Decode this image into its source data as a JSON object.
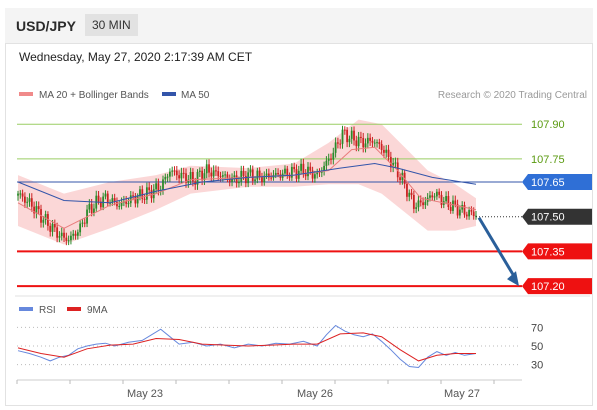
{
  "header": {
    "symbol": "USD/JPY",
    "timeframe": "30 MIN"
  },
  "datetime": "Wednesday, May 27, 2020 2:17:39 AM CET",
  "legend": {
    "ma20": "MA 20 + Bollinger Bands",
    "ma50": "MA 50",
    "source": "Research © 2020 Trading Central"
  },
  "colors": {
    "candle_up": "#2a8a2a",
    "candle_down": "#cc2222",
    "band_fill": "#f9c9c9",
    "ma20": "#e87c7c",
    "ma50": "#3355aa",
    "resistance": "#9acd64",
    "support": "#ee1111",
    "arrow": "#2a5f9a",
    "rsi": "#6688dd",
    "rsi_ma": "#dd2222"
  },
  "chart_data": [
    {
      "type": "candlestick",
      "ylim": [
        107.14,
        107.97
      ],
      "x_ticks": [
        "May 23",
        "May 26",
        "May 27"
      ],
      "levels": [
        {
          "value": 107.9,
          "label": "107.90",
          "kind": "resistance"
        },
        {
          "value": 107.75,
          "label": "107.75",
          "kind": "resistance"
        },
        {
          "value": 107.65,
          "label": "107.65",
          "kind": "pivot"
        },
        {
          "value": 107.35,
          "label": "107.35",
          "kind": "support"
        },
        {
          "value": 107.2,
          "label": "107.20",
          "kind": "support"
        }
      ],
      "current_price": {
        "value": 107.5,
        "label": "107.50"
      },
      "forecast": {
        "from": 107.5,
        "to": 107.2
      },
      "close_path": [
        [
          0,
          107.6
        ],
        [
          6,
          107.55
        ],
        [
          12,
          107.48
        ],
        [
          18,
          107.42
        ],
        [
          22,
          107.4
        ],
        [
          27,
          107.45
        ],
        [
          30,
          107.52
        ],
        [
          34,
          107.56
        ],
        [
          38,
          107.58
        ],
        [
          44,
          107.55
        ],
        [
          50,
          107.58
        ],
        [
          56,
          107.6
        ],
        [
          62,
          107.63
        ],
        [
          66,
          107.7
        ],
        [
          70,
          107.68
        ],
        [
          76,
          107.66
        ],
        [
          82,
          107.7
        ],
        [
          88,
          107.68
        ],
        [
          94,
          107.66
        ],
        [
          100,
          107.68
        ],
        [
          106,
          107.67
        ],
        [
          112,
          107.68
        ],
        [
          118,
          107.69
        ],
        [
          124,
          107.7
        ],
        [
          130,
          107.68
        ],
        [
          136,
          107.76
        ],
        [
          141,
          107.86
        ],
        [
          145,
          107.84
        ],
        [
          150,
          107.82
        ],
        [
          154,
          107.83
        ],
        [
          158,
          107.8
        ],
        [
          162,
          107.74
        ],
        [
          167,
          107.66
        ],
        [
          172,
          107.55
        ],
        [
          176,
          107.56
        ],
        [
          181,
          107.6
        ],
        [
          186,
          107.56
        ],
        [
          190,
          107.54
        ],
        [
          194,
          107.52
        ],
        [
          199,
          107.51
        ]
      ],
      "ma20_path": [
        [
          0,
          107.56
        ],
        [
          20,
          107.45
        ],
        [
          40,
          107.55
        ],
        [
          60,
          107.6
        ],
        [
          75,
          107.66
        ],
        [
          100,
          107.67
        ],
        [
          120,
          107.68
        ],
        [
          135,
          107.7
        ],
        [
          145,
          107.79
        ],
        [
          155,
          107.8
        ],
        [
          165,
          107.7
        ],
        [
          175,
          107.58
        ],
        [
          190,
          107.55
        ],
        [
          199,
          107.53
        ]
      ],
      "ma50_path": [
        [
          0,
          107.65
        ],
        [
          20,
          107.57
        ],
        [
          40,
          107.56
        ],
        [
          60,
          107.61
        ],
        [
          80,
          107.65
        ],
        [
          100,
          107.67
        ],
        [
          120,
          107.68
        ],
        [
          140,
          107.71
        ],
        [
          155,
          107.73
        ],
        [
          165,
          107.71
        ],
        [
          180,
          107.67
        ],
        [
          199,
          107.64
        ]
      ],
      "band_upper": [
        [
          0,
          107.68
        ],
        [
          20,
          107.6
        ],
        [
          40,
          107.65
        ],
        [
          60,
          107.68
        ],
        [
          75,
          107.72
        ],
        [
          100,
          107.71
        ],
        [
          120,
          107.73
        ],
        [
          135,
          107.82
        ],
        [
          148,
          107.92
        ],
        [
          158,
          107.9
        ],
        [
          168,
          107.8
        ],
        [
          178,
          107.7
        ],
        [
          190,
          107.64
        ],
        [
          199,
          107.58
        ]
      ],
      "band_lower": [
        [
          0,
          107.46
        ],
        [
          20,
          107.38
        ],
        [
          40,
          107.45
        ],
        [
          60,
          107.53
        ],
        [
          75,
          107.6
        ],
        [
          100,
          107.63
        ],
        [
          120,
          107.63
        ],
        [
          135,
          107.64
        ],
        [
          148,
          107.64
        ],
        [
          158,
          107.6
        ],
        [
          168,
          107.52
        ],
        [
          178,
          107.44
        ],
        [
          190,
          107.44
        ],
        [
          199,
          107.46
        ]
      ]
    },
    {
      "type": "line",
      "ylim": [
        20,
        80
      ],
      "y_ticks": [
        70,
        50,
        30
      ],
      "series": [
        {
          "name": "RSI",
          "path": [
            [
              0,
              45
            ],
            [
              5,
              42
            ],
            [
              10,
              38
            ],
            [
              14,
              34
            ],
            [
              18,
              38
            ],
            [
              22,
              40
            ],
            [
              26,
              47
            ],
            [
              30,
              50
            ],
            [
              34,
              52
            ],
            [
              38,
              53
            ],
            [
              42,
              50
            ],
            [
              48,
              54
            ],
            [
              54,
              56
            ],
            [
              58,
              62
            ],
            [
              62,
              68
            ],
            [
              66,
              60
            ],
            [
              70,
              52
            ],
            [
              76,
              54
            ],
            [
              82,
              50
            ],
            [
              88,
              52
            ],
            [
              94,
              48
            ],
            [
              100,
              52
            ],
            [
              106,
              50
            ],
            [
              112,
              53
            ],
            [
              118,
              52
            ],
            [
              124,
              55
            ],
            [
              130,
              50
            ],
            [
              134,
              62
            ],
            [
              138,
              72
            ],
            [
              142,
              66
            ],
            [
              146,
              62
            ],
            [
              150,
              60
            ],
            [
              154,
              63
            ],
            [
              158,
              55
            ],
            [
              162,
              46
            ],
            [
              166,
              36
            ],
            [
              170,
              28
            ],
            [
              174,
              27
            ],
            [
              178,
              38
            ],
            [
              182,
              44
            ],
            [
              186,
              40
            ],
            [
              190,
              43
            ],
            [
              194,
              40
            ],
            [
              199,
              42
            ]
          ]
        },
        {
          "name": "9MA",
          "path": [
            [
              0,
              48
            ],
            [
              10,
              42
            ],
            [
              20,
              38
            ],
            [
              30,
              47
            ],
            [
              40,
              51
            ],
            [
              50,
              52
            ],
            [
              60,
              58
            ],
            [
              70,
              57
            ],
            [
              80,
              52
            ],
            [
              90,
              51
            ],
            [
              100,
              50
            ],
            [
              110,
              51
            ],
            [
              120,
              52
            ],
            [
              130,
              52
            ],
            [
              140,
              63
            ],
            [
              150,
              64
            ],
            [
              158,
              60
            ],
            [
              166,
              46
            ],
            [
              174,
              34
            ],
            [
              182,
              40
            ],
            [
              190,
              42
            ],
            [
              199,
              42
            ]
          ]
        }
      ]
    }
  ]
}
